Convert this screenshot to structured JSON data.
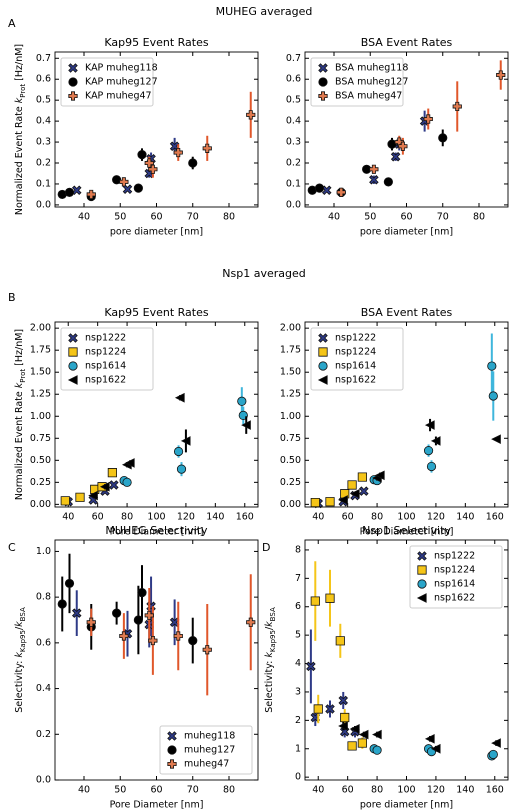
{
  "headings": [
    {
      "label": "A",
      "title": "MUHEG averaged"
    },
    {
      "label": "B",
      "title": "Nsp1 averaged"
    },
    {
      "label": "C"
    },
    {
      "label": "D"
    }
  ],
  "chart_data": [
    {
      "type": "scatter",
      "title": "Kap95 Event Rates",
      "xlabel": "pore diameter [nm]",
      "ylabel": [
        {
          "text": "Normalized Event Rate "
        },
        {
          "text": "k",
          "italic": true
        },
        {
          "text": "Prot",
          "sub": true
        },
        {
          "text": " [Hz/nM]"
        }
      ],
      "xlim": [
        32,
        88
      ],
      "ylim": [
        -0.01,
        0.73
      ],
      "xticks": [
        40,
        50,
        60,
        70,
        80
      ],
      "yticks": [
        {
          "value": 0,
          "label": "0.0"
        },
        0.1,
        0.2,
        0.3,
        0.4,
        0.5,
        0.6,
        0.7
      ],
      "legend": "upper left",
      "series": [
        {
          "name": "KAP muheg118",
          "marker": "X",
          "color": "#2e3a87",
          "ecolor": "#2e3a87",
          "x": [
            38,
            52,
            58,
            58.5,
            65
          ],
          "values": [
            0.07,
            0.075,
            0.15,
            0.22,
            0.28
          ],
          "errors": [
            0.01,
            0.01,
            0.02,
            0.03,
            0.04
          ]
        },
        {
          "name": "KAP muheg127",
          "marker": "o",
          "color": "#000000",
          "ecolor": "#000000",
          "x": [
            34,
            36,
            42,
            49,
            55,
            56,
            70
          ],
          "values": [
            0.05,
            0.06,
            0.04,
            0.12,
            0.08,
            0.24,
            0.2
          ],
          "errors": [
            0.01,
            0.01,
            0.01,
            0.01,
            0.01,
            0.03,
            0.03
          ]
        },
        {
          "name": "KAP muheg47",
          "marker": "P",
          "color": "#e07a4f",
          "ecolor": "#e0572a",
          "x": [
            42,
            51,
            58,
            59,
            66,
            74,
            86
          ],
          "values": [
            0.05,
            0.11,
            0.2,
            0.17,
            0.25,
            0.27,
            0.43
          ],
          "errors": [
            0.01,
            0.02,
            0.03,
            0.04,
            0.04,
            0.06,
            0.11
          ]
        }
      ]
    },
    {
      "type": "scatter",
      "title": "BSA Event Rates",
      "xlabel": "pore diameter [nm]",
      "xlim": [
        32,
        88
      ],
      "ylim": [
        -0.01,
        0.73
      ],
      "xticks": [
        40,
        50,
        60,
        70,
        80
      ],
      "yticks": [
        {
          "value": 0,
          "label": "0.0"
        },
        0.1,
        0.2,
        0.3,
        0.4,
        0.5,
        0.6,
        0.7
      ],
      "legend": "upper left",
      "series": [
        {
          "name": "BSA muheg118",
          "marker": "X",
          "color": "#2e3a87",
          "ecolor": "#2e3a87",
          "x": [
            38,
            51,
            57,
            58,
            65
          ],
          "values": [
            0.07,
            0.12,
            0.23,
            0.29,
            0.4
          ],
          "errors": [
            0.01,
            0.02,
            0.02,
            0.03,
            0.05
          ]
        },
        {
          "name": "BSA muheg127",
          "marker": "o",
          "color": "#000000",
          "ecolor": "#000000",
          "x": [
            34,
            36,
            42,
            49,
            55,
            56,
            70
          ],
          "values": [
            0.07,
            0.08,
            0.06,
            0.17,
            0.11,
            0.29,
            0.32
          ],
          "errors": [
            0.01,
            0.01,
            0.01,
            0.02,
            0.01,
            0.03,
            0.04
          ]
        },
        {
          "name": "BSA muheg47",
          "marker": "P",
          "color": "#e07a4f",
          "ecolor": "#e0572a",
          "x": [
            42,
            51,
            58,
            59,
            66,
            74,
            86
          ],
          "values": [
            0.06,
            0.17,
            0.3,
            0.28,
            0.41,
            0.47,
            0.62
          ],
          "errors": [
            0.01,
            0.02,
            0.03,
            0.04,
            0.05,
            0.12,
            0.07
          ]
        }
      ]
    },
    {
      "type": "scatter",
      "title": "Kap95 Event Rates",
      "xlabel": "Pore Diameter [nm]",
      "ylabel": [
        {
          "text": "Normalized Event Rate "
        },
        {
          "text": "k",
          "italic": true
        },
        {
          "text": "Prot",
          "sub": true
        },
        {
          "text": " [Hz/nM]"
        }
      ],
      "xlim": [
        31,
        169
      ],
      "ylim": [
        -0.03,
        2.07
      ],
      "xticks": [
        40,
        60,
        80,
        100,
        120,
        140,
        160
      ],
      "yticks": [
        {
          "value": 0,
          "label": "0.00"
        },
        0.25,
        {
          "value": 0.5,
          "label": "0.50"
        },
        0.75,
        {
          "value": 1,
          "label": "1.00"
        },
        1.25,
        {
          "value": 1.5,
          "label": "1.50"
        },
        1.75,
        {
          "value": 2,
          "label": "2.00"
        }
      ],
      "legend": "upper left",
      "series": [
        {
          "name": "nsp1222",
          "marker": "X",
          "color": "#2e3a87",
          "ecolor": "#2e3a87",
          "x": [
            40,
            57,
            65,
            71
          ],
          "values": [
            0.03,
            0.05,
            0.15,
            0.22
          ],
          "errors": [
            0.01,
            0.01,
            0.02,
            0.02
          ]
        },
        {
          "name": "nsp1224",
          "marker": "s",
          "color": "#f5c518",
          "ecolor": "#f5c518",
          "x": [
            38,
            48,
            58,
            63,
            70
          ],
          "values": [
            0.04,
            0.08,
            0.17,
            0.2,
            0.36
          ],
          "errors": [
            0.01,
            0.01,
            0.02,
            0.02,
            0.03
          ]
        },
        {
          "name": "nsp1614",
          "marker": "o",
          "color": "#2aa5c9",
          "ecolor": "#3fb6dc",
          "x": [
            78,
            80,
            115,
            117,
            158,
            159
          ],
          "values": [
            0.27,
            0.25,
            0.6,
            0.4,
            1.17,
            1.01
          ],
          "errors": [
            0.02,
            0.02,
            0.07,
            0.08,
            0.16,
            0.1
          ]
        },
        {
          "name": "nsp1622",
          "marker": "<",
          "color": "#000000",
          "ecolor": "#000000",
          "x": [
            57,
            65,
            80,
            82,
            116,
            120,
            161
          ],
          "values": [
            0.1,
            0.2,
            0.45,
            0.47,
            1.21,
            0.72,
            0.9
          ],
          "errors": [
            0.02,
            0.03,
            0.03,
            0.03,
            0.03,
            0.13,
            0.1
          ]
        }
      ]
    },
    {
      "type": "scatter",
      "title": "BSA Event Rates",
      "xlabel": "Pore Diameter [nm]",
      "xlim": [
        31,
        169
      ],
      "ylim": [
        -0.03,
        2.07
      ],
      "xticks": [
        40,
        60,
        80,
        100,
        120,
        140,
        160
      ],
      "yticks": [
        {
          "value": 0,
          "label": "0.00"
        },
        0.25,
        {
          "value": 0.5,
          "label": "0.50"
        },
        0.75,
        {
          "value": 1,
          "label": "1.00"
        },
        1.25,
        {
          "value": 1.5,
          "label": "1.50"
        },
        1.75,
        {
          "value": 2,
          "label": "2.00"
        }
      ],
      "legend": "upper left",
      "series": [
        {
          "name": "nsp1222",
          "marker": "X",
          "color": "#2e3a87",
          "ecolor": "#2e3a87",
          "x": [
            40,
            57,
            65,
            71
          ],
          "values": [
            0.01,
            0.03,
            0.1,
            0.15
          ],
          "errors": [
            0.01,
            0.01,
            0.01,
            0.02
          ]
        },
        {
          "name": "nsp1224",
          "marker": "s",
          "color": "#f5c518",
          "ecolor": "#f5c518",
          "x": [
            38,
            48,
            58,
            63,
            70
          ],
          "values": [
            0.02,
            0.03,
            0.12,
            0.22,
            0.31
          ],
          "errors": [
            0.01,
            0.01,
            0.02,
            0.02,
            0.03
          ]
        },
        {
          "name": "nsp1614",
          "marker": "o",
          "color": "#2aa5c9",
          "ecolor": "#3fb6dc",
          "x": [
            78,
            80,
            115,
            117,
            158,
            159
          ],
          "values": [
            0.28,
            0.27,
            0.61,
            0.43,
            1.57,
            1.23
          ],
          "errors": [
            0.02,
            0.02,
            0.07,
            0.07,
            0.37,
            0.28
          ]
        },
        {
          "name": "nsp1622",
          "marker": "<",
          "color": "#000000",
          "ecolor": "#000000",
          "x": [
            57,
            65,
            80,
            82,
            116,
            120,
            161
          ],
          "values": [
            0.05,
            0.12,
            0.3,
            0.33,
            0.9,
            0.72,
            0.74
          ],
          "errors": [
            0.01,
            0.02,
            0.03,
            0.03,
            0.07,
            0.05,
            0.02
          ]
        }
      ]
    },
    {
      "type": "scatter",
      "title": "MUHEG Selectivity",
      "xlabel": "Pore Diameter [nm]",
      "ylabel": [
        {
          "text": "Selectivity:  "
        },
        {
          "text": "k",
          "italic": true
        },
        {
          "text": "Kap95",
          "sub": true
        },
        {
          "text": "/"
        },
        {
          "text": "k",
          "italic": true
        },
        {
          "text": "BSA",
          "sub": true
        }
      ],
      "xlim": [
        32,
        88
      ],
      "ylim": [
        0,
        1.05
      ],
      "xticks": [
        40,
        50,
        60,
        70,
        80
      ],
      "yticks": [
        {
          "value": 0,
          "label": "0.0"
        },
        0.2,
        0.4,
        0.6,
        0.8,
        {
          "value": 1,
          "label": "1.0"
        }
      ],
      "legend": "lower right",
      "series": [
        {
          "name": "muheg118",
          "marker": "X",
          "color": "#2e3a87",
          "ecolor": "#2e3a87",
          "x": [
            38,
            52,
            58,
            58.5,
            65
          ],
          "values": [
            0.73,
            0.64,
            0.68,
            0.76,
            0.69
          ],
          "errors": [
            0.1,
            0.1,
            0.1,
            0.13,
            0.1
          ]
        },
        {
          "name": "muheg127",
          "marker": "o",
          "color": "#000000",
          "ecolor": "#000000",
          "x": [
            34,
            36,
            42,
            49,
            55,
            56,
            70
          ],
          "values": [
            0.77,
            0.86,
            0.67,
            0.73,
            0.7,
            0.82,
            0.61
          ],
          "errors": [
            0.12,
            0.13,
            0.1,
            0.05,
            0.15,
            0.12,
            0.1
          ]
        },
        {
          "name": "muheg47",
          "marker": "P",
          "color": "#e07a4f",
          "ecolor": "#e0572a",
          "x": [
            42,
            51,
            58,
            59,
            66,
            74,
            86
          ],
          "values": [
            0.69,
            0.63,
            0.72,
            0.61,
            0.63,
            0.57,
            0.69
          ],
          "errors": [
            0.06,
            0.1,
            0.12,
            0.15,
            0.15,
            0.2,
            0.21
          ]
        }
      ]
    },
    {
      "type": "scatter",
      "title": "Nsp1 Selectivity",
      "xlabel": "pore diameter [nm]",
      "ylabel": [
        {
          "text": "Selectivity:  "
        },
        {
          "text": "k",
          "italic": true
        },
        {
          "text": "Kap95",
          "sub": true
        },
        {
          "text": "/"
        },
        {
          "text": "k",
          "italic": true
        },
        {
          "text": "BSA",
          "sub": true
        }
      ],
      "xlim": [
        31,
        169
      ],
      "ylim": [
        -0.1,
        8.35
      ],
      "xticks": [
        40,
        60,
        80,
        100,
        120,
        140,
        160
      ],
      "yticks": [
        0,
        1,
        2,
        3,
        4,
        5,
        6,
        7,
        8
      ],
      "legend": "upper right",
      "series": [
        {
          "name": "nsp1222",
          "marker": "X",
          "color": "#2e3a87",
          "ecolor": "#2e3a87",
          "x": [
            35,
            38,
            48,
            57,
            58,
            65
          ],
          "values": [
            3.9,
            2.1,
            2.4,
            2.7,
            1.6,
            1.6
          ],
          "errors": [
            1.3,
            0.3,
            0.3,
            0.3,
            0.2,
            0.2
          ]
        },
        {
          "name": "nsp1224",
          "marker": "s",
          "color": "#f5c518",
          "ecolor": "#f5c518",
          "x": [
            38,
            40,
            48,
            55,
            58,
            63,
            70
          ],
          "values": [
            6.2,
            2.4,
            6.3,
            4.8,
            2.1,
            1.1,
            1.2
          ],
          "errors": [
            1.4,
            0.5,
            1.0,
            0.6,
            0.3,
            0.15,
            0.2
          ]
        },
        {
          "name": "nsp1614",
          "marker": "o",
          "color": "#2aa5c9",
          "ecolor": "#3fb6dc",
          "x": [
            78,
            80,
            115,
            117,
            158,
            159
          ],
          "values": [
            1.0,
            0.95,
            1.0,
            0.9,
            0.75,
            0.8
          ],
          "errors": [
            0.05,
            0.05,
            0.1,
            0.1,
            0.15,
            0.1
          ]
        },
        {
          "name": "nsp1622",
          "marker": "<",
          "color": "#000000",
          "ecolor": "#000000",
          "x": [
            57,
            65,
            71,
            80,
            116,
            120,
            161
          ],
          "values": [
            1.8,
            1.7,
            1.5,
            1.5,
            1.35,
            1.0,
            1.2
          ],
          "errors": [
            0.15,
            0.1,
            0.1,
            0.1,
            0.1,
            0.1,
            0.1
          ]
        }
      ]
    }
  ]
}
